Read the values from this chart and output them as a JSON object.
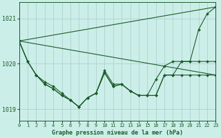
{
  "bg_color": "#cceee8",
  "grid_color": "#aacccc",
  "line_color": "#1a5c2a",
  "xlabel": "Graphe pression niveau de la mer (hPa)",
  "xlim": [
    0,
    23
  ],
  "ylim": [
    1018.75,
    1021.35
  ],
  "yticks": [
    1019,
    1020,
    1021
  ],
  "xticks": [
    0,
    1,
    2,
    3,
    4,
    5,
    6,
    7,
    8,
    9,
    10,
    11,
    12,
    13,
    14,
    15,
    16,
    17,
    18,
    19,
    20,
    21,
    22,
    23
  ],
  "lines": [
    {
      "x": [
        0,
        1,
        2,
        3,
        4,
        5,
        6,
        7,
        8,
        9,
        10,
        11,
        12,
        13,
        14,
        15,
        16,
        17,
        18,
        19,
        20,
        21,
        22,
        23
      ],
      "y": [
        1020.5,
        1020.05,
        1019.75,
        1019.55,
        1019.45,
        1019.3,
        1019.2,
        1019.05,
        1019.25,
        1019.35,
        1019.8,
        1019.5,
        1019.55,
        1019.4,
        1019.3,
        1019.3,
        1019.3,
        1019.75,
        1019.75,
        1019.75,
        1019.75,
        1019.75,
        1019.75,
        1019.75
      ],
      "marker": true,
      "linewidth": 0.8
    },
    {
      "x": [
        0,
        1,
        2,
        3,
        4,
        5,
        6,
        7,
        8,
        9,
        10,
        11,
        12,
        13,
        14,
        15,
        16,
        17,
        18,
        19,
        20,
        21,
        22,
        23
      ],
      "y": [
        1020.5,
        1020.05,
        1019.75,
        1019.55,
        1019.45,
        1019.3,
        1019.2,
        1019.05,
        1019.25,
        1019.35,
        1019.8,
        1019.5,
        1019.55,
        1019.4,
        1019.3,
        1019.3,
        1019.65,
        1019.95,
        1020.05,
        1020.05,
        1020.05,
        1020.05,
        1020.05,
        1020.05
      ],
      "marker": true,
      "linewidth": 0.8
    },
    {
      "x": [
        0,
        1,
        2,
        3,
        4,
        5,
        6,
        7,
        8,
        9,
        10,
        11,
        12,
        13,
        14,
        15,
        16,
        17,
        18,
        19,
        20,
        21,
        22,
        23
      ],
      "y": [
        1020.5,
        1020.05,
        1019.75,
        1019.6,
        1019.5,
        1019.35,
        1019.2,
        1019.05,
        1019.25,
        1019.35,
        1019.85,
        1019.55,
        1019.55,
        1019.4,
        1019.3,
        1019.3,
        1019.3,
        1019.75,
        1019.75,
        1020.05,
        1020.05,
        1020.75,
        1021.1,
        1021.25
      ],
      "marker": true,
      "linewidth": 0.8
    },
    {
      "x": [
        0,
        23
      ],
      "y": [
        1020.5,
        1019.75
      ],
      "marker": false,
      "linewidth": 0.8
    },
    {
      "x": [
        0,
        23
      ],
      "y": [
        1020.5,
        1021.25
      ],
      "marker": false,
      "linewidth": 0.8
    }
  ]
}
